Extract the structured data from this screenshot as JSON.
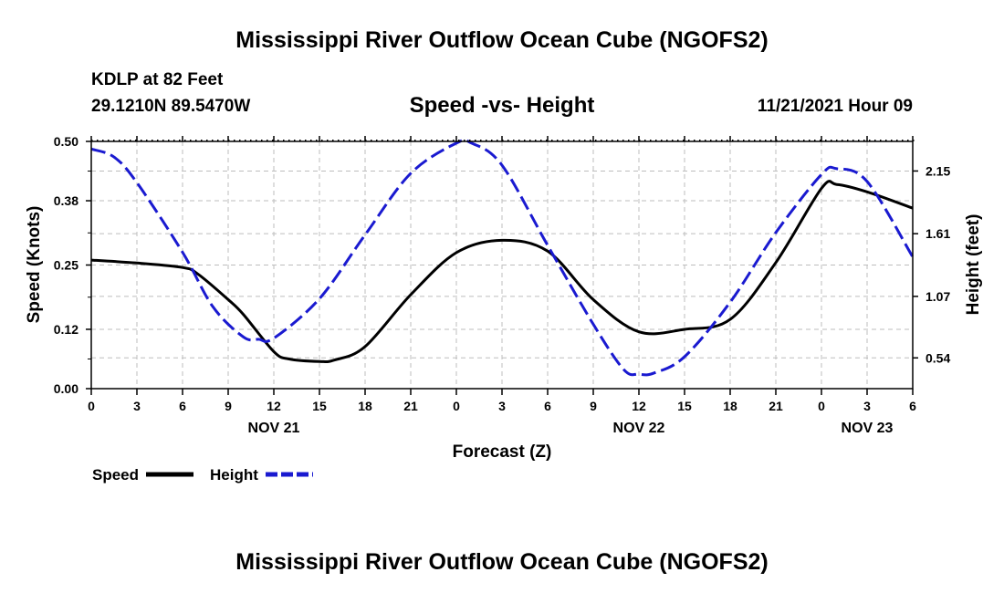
{
  "header": {
    "title": "Mississippi River Outflow Ocean Cube (NGOFS2)",
    "station_line1": "KDLP at 82 Feet",
    "station_line2": "29.1210N  89.5470W",
    "datetime": "11/21/2021 Hour 09"
  },
  "footer": {
    "title": "Mississippi River Outflow Ocean Cube (NGOFS2)"
  },
  "legend": {
    "speed_label": "Speed",
    "height_label": "Height"
  },
  "colors": {
    "speed": "#000000",
    "height": "#1a1ad0",
    "grid": "#bdbdbd"
  },
  "chart_data": {
    "type": "line",
    "title": "Speed -vs- Height",
    "xlabel": "Forecast (Z)",
    "ylabel": "Speed (Knots)",
    "y2label": "Height (feet)",
    "xlim": [
      0,
      54
    ],
    "ylim": [
      0,
      0.5
    ],
    "y2lim": [
      0.275,
      2.405
    ],
    "x_ticks": [
      0,
      3,
      6,
      9,
      12,
      15,
      18,
      21,
      24,
      27,
      30,
      33,
      36,
      39,
      42,
      45,
      48,
      51,
      54
    ],
    "x_tick_labels": [
      "0",
      "3",
      "6",
      "9",
      "12",
      "15",
      "18",
      "21",
      "0",
      "3",
      "6",
      "9",
      "12",
      "15",
      "18",
      "21",
      "0",
      "3",
      "6"
    ],
    "date_labels": [
      {
        "x": 12,
        "label": "NOV 21"
      },
      {
        "x": 36,
        "label": "NOV 22"
      },
      {
        "x": 51,
        "label": "NOV 23"
      }
    ],
    "y_ticks": [
      0.0,
      0.12,
      0.25,
      0.38,
      0.5
    ],
    "y_tick_labels": [
      "0.00",
      "0.12",
      "0.25",
      "0.38",
      "0.50"
    ],
    "y2_ticks": [
      0.54,
      1.07,
      1.61,
      2.15
    ],
    "y2_tick_labels": [
      "0.54",
      "1.07",
      "1.61",
      "2.15"
    ],
    "grid": true,
    "legend_position": "bottom-left",
    "series": [
      {
        "name": "Speed",
        "axis": "left",
        "style": "solid",
        "x": [
          0,
          3,
          6,
          7,
          9,
          10,
          12,
          13,
          15,
          16,
          18,
          21,
          24,
          27,
          30,
          33,
          36,
          39,
          42,
          45,
          48,
          49,
          51,
          54
        ],
        "values": [
          0.26,
          0.254,
          0.245,
          0.232,
          0.18,
          0.15,
          0.075,
          0.06,
          0.055,
          0.058,
          0.085,
          0.19,
          0.275,
          0.3,
          0.278,
          0.18,
          0.115,
          0.12,
          0.14,
          0.255,
          0.405,
          0.413,
          0.398,
          0.365
        ]
      },
      {
        "name": "Height",
        "axis": "right",
        "style": "dashed",
        "x": [
          0,
          1.5,
          3,
          6,
          8,
          10,
          11,
          12,
          15,
          18,
          21,
          24,
          25,
          27,
          30,
          33,
          35,
          36,
          37,
          39,
          42,
          45,
          48,
          49,
          51,
          54
        ],
        "values": [
          2.34,
          2.27,
          2.05,
          1.45,
          0.98,
          0.72,
          0.7,
          0.71,
          1.05,
          1.6,
          2.13,
          2.39,
          2.39,
          2.2,
          1.51,
          0.83,
          0.44,
          0.4,
          0.41,
          0.55,
          1.02,
          1.62,
          2.12,
          2.17,
          2.06,
          1.41
        ]
      }
    ]
  }
}
